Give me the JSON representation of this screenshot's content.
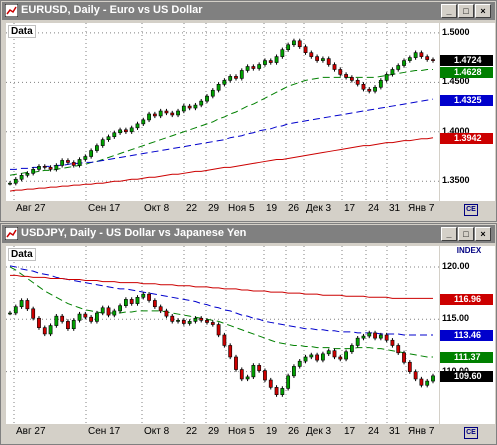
{
  "windows": [
    {
      "title": "EURUSD, Daily - Euro vs US Dollar",
      "data_label": "Data",
      "index_label": "",
      "y_ticks": [
        "1.5000",
        "1.4500",
        "1.4000",
        "1.3500"
      ],
      "price_boxes": [
        {
          "label": "1.4724",
          "color": "#000000"
        },
        {
          "label": "1.4628",
          "color": "#008000"
        },
        {
          "label": "1.4325",
          "color": "#0000cc"
        },
        {
          "label": "1.3942",
          "color": "#cc0000"
        }
      ],
      "x_ticks": [
        "Авг 27",
        "Сен 17",
        "Окт 8",
        "22",
        "29",
        "Ноя 5",
        "19",
        "26",
        "Дек 3",
        "17",
        "24",
        "31",
        "Янв 7"
      ]
    },
    {
      "title": "USDJPY, Daily - US Dollar vs Japanese Yen",
      "data_label": "Data",
      "index_label": "INDEX",
      "y_ticks": [
        "120.00",
        "115.00",
        "110.00"
      ],
      "price_boxes": [
        {
          "label": "116.96",
          "color": "#cc0000"
        },
        {
          "label": "113.46",
          "color": "#0000cc"
        },
        {
          "label": "111.37",
          "color": "#008000"
        },
        {
          "label": "109.60",
          "color": "#000000"
        }
      ],
      "x_ticks": [
        "Авг 27",
        "Сен 17",
        "Окт 8",
        "22",
        "29",
        "Ноя 5",
        "19",
        "26",
        "Дек 3",
        "17",
        "24",
        "31",
        "Янв 7"
      ]
    }
  ],
  "chart_data": [
    {
      "type": "line",
      "title": "EURUSD, Daily - Euro vs US Dollar",
      "ylim": [
        1.33,
        1.51
      ],
      "series": [
        {
          "name": "",
          "color": "#000000",
          "values": [
            1.348,
            1.352,
            1.356,
            1.358,
            1.362,
            1.365,
            1.364,
            1.362,
            1.366,
            1.371,
            1.369,
            1.366,
            1.372,
            1.375,
            1.381,
            1.386,
            1.392,
            1.395,
            1.399,
            1.402,
            1.4,
            1.404,
            1.408,
            1.412,
            1.418,
            1.416,
            1.421,
            1.419,
            1.417,
            1.421,
            1.426,
            1.424,
            1.427,
            1.431,
            1.436,
            1.442,
            1.448,
            1.452,
            1.456,
            1.454,
            1.462,
            1.466,
            1.464,
            1.468,
            1.472,
            1.47,
            1.476,
            1.483,
            1.488,
            1.492,
            1.486,
            1.48,
            1.476,
            1.472,
            1.474,
            1.468,
            1.463,
            1.458,
            1.455,
            1.452,
            1.448,
            1.443,
            1.441,
            1.445,
            1.452,
            1.458,
            1.463,
            1.467,
            1.472,
            1.475,
            1.48,
            1.476,
            1.473,
            1.472
          ]
        },
        {
          "name": "",
          "color": "#008000",
          "values": [
            1.356,
            1.357,
            1.358,
            1.359,
            1.359,
            1.36,
            1.361,
            1.361,
            1.362,
            1.363,
            1.364,
            1.365,
            1.366,
            1.367,
            1.369,
            1.37,
            1.372,
            1.374,
            1.376,
            1.378,
            1.38,
            1.382,
            1.384,
            1.386,
            1.388,
            1.39,
            1.392,
            1.394,
            1.396,
            1.398,
            1.4,
            1.402,
            1.404,
            1.406,
            1.408,
            1.41,
            1.413,
            1.415,
            1.418,
            1.42,
            1.423,
            1.426,
            1.428,
            1.431,
            1.434,
            1.437,
            1.44,
            1.443,
            1.446,
            1.448,
            1.45,
            1.452,
            1.453,
            1.454,
            1.455,
            1.455,
            1.455,
            1.455,
            1.455,
            1.455,
            1.455,
            1.455,
            1.455,
            1.455,
            1.456,
            1.457,
            1.458,
            1.459,
            1.46,
            1.461,
            1.462,
            1.462,
            1.463,
            1.463
          ]
        },
        {
          "name": "",
          "color": "#0000cc",
          "values": [
            1.362,
            1.362,
            1.363,
            1.363,
            1.364,
            1.364,
            1.365,
            1.365,
            1.366,
            1.366,
            1.367,
            1.368,
            1.368,
            1.369,
            1.369,
            1.37,
            1.371,
            1.372,
            1.373,
            1.374,
            1.375,
            1.376,
            1.377,
            1.378,
            1.379,
            1.38,
            1.381,
            1.382,
            1.383,
            1.384,
            1.385,
            1.386,
            1.387,
            1.388,
            1.389,
            1.39,
            1.391,
            1.392,
            1.394,
            1.395,
            1.396,
            1.398,
            1.399,
            1.401,
            1.402,
            1.403,
            1.405,
            1.406,
            1.408,
            1.409,
            1.41,
            1.411,
            1.412,
            1.413,
            1.414,
            1.415,
            1.416,
            1.417,
            1.418,
            1.419,
            1.42,
            1.421,
            1.422,
            1.423,
            1.424,
            1.425,
            1.426,
            1.427,
            1.428,
            1.429,
            1.43,
            1.431,
            1.432,
            1.433
          ]
        },
        {
          "name": "",
          "color": "#cc0000",
          "values": [
            1.34,
            1.341,
            1.341,
            1.342,
            1.342,
            1.343,
            1.343,
            1.344,
            1.344,
            1.345,
            1.345,
            1.346,
            1.346,
            1.347,
            1.347,
            1.348,
            1.348,
            1.349,
            1.35,
            1.35,
            1.351,
            1.352,
            1.352,
            1.353,
            1.354,
            1.354,
            1.355,
            1.356,
            1.357,
            1.357,
            1.358,
            1.359,
            1.36,
            1.36,
            1.361,
            1.362,
            1.363,
            1.364,
            1.364,
            1.365,
            1.366,
            1.367,
            1.368,
            1.369,
            1.37,
            1.371,
            1.372,
            1.372,
            1.373,
            1.374,
            1.375,
            1.376,
            1.377,
            1.378,
            1.379,
            1.38,
            1.381,
            1.382,
            1.383,
            1.384,
            1.385,
            1.386,
            1.386,
            1.387,
            1.388,
            1.389,
            1.389,
            1.39,
            1.391,
            1.391,
            1.392,
            1.393,
            1.393,
            1.394
          ]
        }
      ]
    },
    {
      "type": "line",
      "title": "USDJPY, Daily - US Dollar vs Japanese Yen",
      "ylim": [
        105.0,
        122.0
      ],
      "series": [
        {
          "name": "",
          "color": "#000000",
          "values": [
            115.6,
            116.2,
            116.8,
            116.0,
            115.1,
            114.2,
            113.6,
            114.4,
            115.3,
            114.8,
            114.1,
            114.9,
            115.5,
            115.2,
            114.8,
            115.6,
            116.1,
            115.4,
            115.8,
            116.3,
            116.9,
            116.5,
            117.1,
            117.4,
            116.8,
            116.2,
            115.8,
            115.3,
            114.8,
            114.9,
            114.6,
            114.8,
            115.1,
            114.9,
            114.7,
            114.5,
            113.5,
            112.5,
            111.4,
            110.2,
            109.3,
            109.5,
            110.6,
            110.1,
            109.2,
            108.5,
            107.8,
            108.4,
            109.6,
            110.5,
            111.0,
            111.4,
            111.6,
            111.1,
            111.7,
            112.0,
            111.4,
            111.2,
            111.9,
            112.5,
            113.2,
            113.4,
            113.7,
            113.2,
            113.5,
            113.0,
            112.5,
            111.8,
            110.9,
            110.0,
            109.3,
            108.7,
            109.1,
            109.6
          ]
        },
        {
          "name": "",
          "color": "#008000",
          "values": [
            120.0,
            119.7,
            119.3,
            118.9,
            118.5,
            118.1,
            117.7,
            117.4,
            117.1,
            116.8,
            116.5,
            116.3,
            116.1,
            115.9,
            115.8,
            115.7,
            115.6,
            115.6,
            115.6,
            115.6,
            115.7,
            115.7,
            115.8,
            115.8,
            115.8,
            115.8,
            115.8,
            115.7,
            115.6,
            115.5,
            115.4,
            115.3,
            115.2,
            115.1,
            115.0,
            114.9,
            114.8,
            114.6,
            114.4,
            114.2,
            114.0,
            113.8,
            113.6,
            113.4,
            113.2,
            113.0,
            112.8,
            112.7,
            112.6,
            112.5,
            112.5,
            112.4,
            112.4,
            112.3,
            112.3,
            112.3,
            112.2,
            112.2,
            112.2,
            112.2,
            112.3,
            112.3,
            112.3,
            112.2,
            112.2,
            112.1,
            112.0,
            111.9,
            111.8,
            111.7,
            111.6,
            111.5,
            111.4,
            111.4
          ]
        },
        {
          "name": "",
          "color": "#0000cc",
          "values": [
            120.1,
            120.0,
            119.8,
            119.7,
            119.6,
            119.4,
            119.3,
            119.2,
            119.0,
            118.9,
            118.8,
            118.7,
            118.6,
            118.5,
            118.4,
            118.3,
            118.2,
            118.1,
            118.0,
            117.9,
            117.9,
            117.8,
            117.7,
            117.6,
            117.5,
            117.4,
            117.3,
            117.2,
            117.1,
            117.0,
            116.9,
            116.8,
            116.7,
            116.5,
            116.4,
            116.2,
            116.1,
            115.9,
            115.8,
            115.6,
            115.4,
            115.3,
            115.1,
            115.0,
            114.8,
            114.7,
            114.6,
            114.5,
            114.4,
            114.3,
            114.2,
            114.1,
            114.1,
            114.0,
            114.0,
            113.9,
            113.9,
            113.8,
            113.8,
            113.8,
            113.7,
            113.7,
            113.7,
            113.7,
            113.6,
            113.6,
            113.6,
            113.6,
            113.5,
            113.5,
            113.5,
            113.5,
            113.5,
            113.5
          ]
        },
        {
          "name": "",
          "color": "#cc0000",
          "values": [
            119.2,
            119.2,
            119.1,
            119.1,
            119.0,
            119.0,
            119.0,
            118.9,
            118.9,
            118.9,
            118.8,
            118.8,
            118.8,
            118.7,
            118.7,
            118.7,
            118.6,
            118.6,
            118.6,
            118.5,
            118.5,
            118.5,
            118.5,
            118.4,
            118.4,
            118.4,
            118.3,
            118.3,
            118.3,
            118.2,
            118.2,
            118.2,
            118.1,
            118.1,
            118.1,
            118.0,
            118.0,
            117.9,
            117.9,
            117.9,
            117.8,
            117.8,
            117.7,
            117.7,
            117.7,
            117.6,
            117.6,
            117.6,
            117.5,
            117.5,
            117.5,
            117.4,
            117.4,
            117.4,
            117.3,
            117.3,
            117.3,
            117.3,
            117.2,
            117.2,
            117.2,
            117.2,
            117.1,
            117.1,
            117.1,
            117.1,
            117.0,
            117.0,
            117.0,
            117.0,
            117.0,
            117.0,
            117.0,
            117.0
          ]
        }
      ]
    }
  ]
}
